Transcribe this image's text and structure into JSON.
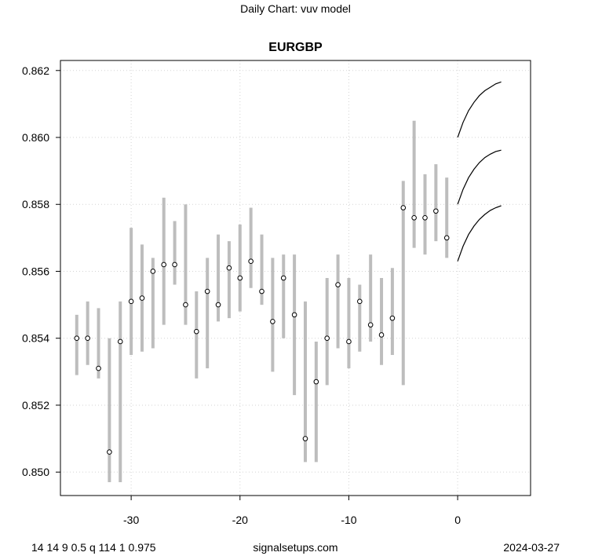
{
  "header": {
    "suptitle": "Daily Chart: vuv model"
  },
  "footer": {
    "left": "14 14 9 0.5 q 114 1 0.975",
    "center": "signalsetups.com",
    "right": "2024-03-27"
  },
  "chart_data": {
    "type": "scatter",
    "title": "EURGBP",
    "xlim": [
      -36.5,
      6.7
    ],
    "ylim": [
      0.8493,
      0.8623
    ],
    "x_ticks": [
      -30,
      -20,
      -10,
      0
    ],
    "y_ticks": [
      0.85,
      0.852,
      0.854,
      0.856,
      0.858,
      0.86,
      0.862
    ],
    "grid": true,
    "series": [
      {
        "kind": "points_with_range",
        "color": "#bdbdbd",
        "points": [
          {
            "x": -35,
            "y": 0.854,
            "low": 0.8529,
            "high": 0.8547
          },
          {
            "x": -34,
            "y": 0.854,
            "low": 0.8532,
            "high": 0.8551
          },
          {
            "x": -33,
            "y": 0.8531,
            "low": 0.8528,
            "high": 0.8549
          },
          {
            "x": -32,
            "y": 0.8506,
            "low": 0.8497,
            "high": 0.854
          },
          {
            "x": -31,
            "y": 0.8539,
            "low": 0.8497,
            "high": 0.8551
          },
          {
            "x": -30,
            "y": 0.8551,
            "low": 0.8535,
            "high": 0.8573
          },
          {
            "x": -29,
            "y": 0.8552,
            "low": 0.8536,
            "high": 0.8568
          },
          {
            "x": -28,
            "y": 0.856,
            "low": 0.8537,
            "high": 0.8564
          },
          {
            "x": -27,
            "y": 0.8562,
            "low": 0.8544,
            "high": 0.8582
          },
          {
            "x": -26,
            "y": 0.8562,
            "low": 0.8556,
            "high": 0.8575
          },
          {
            "x": -25,
            "y": 0.855,
            "low": 0.8544,
            "high": 0.858
          },
          {
            "x": -24,
            "y": 0.8542,
            "low": 0.8528,
            "high": 0.8554
          },
          {
            "x": -23,
            "y": 0.8554,
            "low": 0.8531,
            "high": 0.8564
          },
          {
            "x": -22,
            "y": 0.855,
            "low": 0.8545,
            "high": 0.8571
          },
          {
            "x": -21,
            "y": 0.8561,
            "low": 0.8546,
            "high": 0.8569
          },
          {
            "x": -20,
            "y": 0.8558,
            "low": 0.8548,
            "high": 0.8574
          },
          {
            "x": -19,
            "y": 0.8563,
            "low": 0.8555,
            "high": 0.8579
          },
          {
            "x": -18,
            "y": 0.8554,
            "low": 0.855,
            "high": 0.8571
          },
          {
            "x": -17,
            "y": 0.8545,
            "low": 0.853,
            "high": 0.8564
          },
          {
            "x": -16,
            "y": 0.8558,
            "low": 0.854,
            "high": 0.8565
          },
          {
            "x": -15,
            "y": 0.8547,
            "low": 0.8523,
            "high": 0.8565
          },
          {
            "x": -14,
            "y": 0.851,
            "low": 0.8503,
            "high": 0.8551
          },
          {
            "x": -13,
            "y": 0.8527,
            "low": 0.8503,
            "high": 0.8539
          },
          {
            "x": -12,
            "y": 0.854,
            "low": 0.8526,
            "high": 0.8558
          },
          {
            "x": -11,
            "y": 0.8556,
            "low": 0.8537,
            "high": 0.8565
          },
          {
            "x": -10,
            "y": 0.8539,
            "low": 0.8531,
            "high": 0.8558
          },
          {
            "x": -9,
            "y": 0.8551,
            "low": 0.8536,
            "high": 0.8556
          },
          {
            "x": -8,
            "y": 0.8544,
            "low": 0.8539,
            "high": 0.8565
          },
          {
            "x": -7,
            "y": 0.8541,
            "low": 0.8532,
            "high": 0.8558
          },
          {
            "x": -6,
            "y": 0.8546,
            "low": 0.8535,
            "high": 0.8561
          },
          {
            "x": -5,
            "y": 0.8579,
            "low": 0.8526,
            "high": 0.8587
          },
          {
            "x": -4,
            "y": 0.8576,
            "low": 0.8567,
            "high": 0.8605
          },
          {
            "x": -3,
            "y": 0.8576,
            "low": 0.8565,
            "high": 0.8589
          },
          {
            "x": -2,
            "y": 0.8578,
            "low": 0.8569,
            "high": 0.8592
          },
          {
            "x": -1,
            "y": 0.857,
            "low": 0.8564,
            "high": 0.8588
          }
        ]
      },
      {
        "kind": "forecast_line",
        "color": "#000000",
        "x": [
          0,
          0.5,
          1,
          1.5,
          2,
          2.5,
          3,
          3.5,
          4
        ],
        "y": [
          0.86,
          0.86045,
          0.8608,
          0.86105,
          0.86125,
          0.8614,
          0.8615,
          0.8616,
          0.86166
        ]
      },
      {
        "kind": "forecast_line",
        "color": "#000000",
        "x": [
          0,
          0.5,
          1,
          1.5,
          2,
          2.5,
          3,
          3.5,
          4
        ],
        "y": [
          0.858,
          0.85845,
          0.8588,
          0.85905,
          0.85925,
          0.8594,
          0.8595,
          0.85958,
          0.85962
        ]
      },
      {
        "kind": "forecast_line",
        "color": "#000000",
        "x": [
          0,
          0.5,
          1,
          1.5,
          2,
          2.5,
          3,
          3.5,
          4
        ],
        "y": [
          0.8563,
          0.85675,
          0.8571,
          0.85735,
          0.85755,
          0.8577,
          0.85782,
          0.8579,
          0.85796
        ]
      }
    ]
  }
}
